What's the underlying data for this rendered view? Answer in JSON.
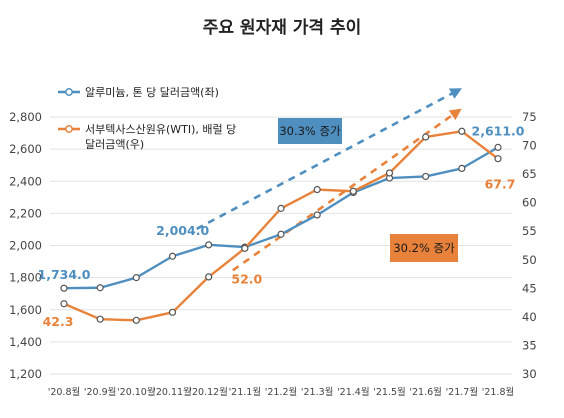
{
  "chart_data": {
    "type": "line",
    "title": "주요 원자재 가격 추이",
    "categories": [
      "'20.8월",
      "'20.9월",
      "'20.10월",
      "'20.11월",
      "'20.12월",
      "'21.1월",
      "'21.2월",
      "'21.3월",
      "'21.4월",
      "'21.5월",
      "'21.6월",
      "'21.7월",
      "'21.8월"
    ],
    "series": [
      {
        "name": "알루미늄, 톤 당 달러금액(좌)",
        "axis": "left",
        "color": "#4f8fc0",
        "values": [
          1734.0,
          1737,
          1800,
          1933,
          2004.0,
          1990,
          2070,
          2190,
          2330,
          2420,
          2430,
          2480,
          2611.0
        ]
      },
      {
        "name": "서부텍사스산원유(WTI), 배럴 당 달러금액(우)",
        "axis": "right",
        "color": "#e8823a",
        "values": [
          42.3,
          39.6,
          39.4,
          40.8,
          47.0,
          52.0,
          59.0,
          62.3,
          62.0,
          65.2,
          71.5,
          72.5,
          67.7
        ]
      }
    ],
    "y_left": {
      "min": 1200,
      "max": 2800,
      "ticks": [
        "1,200",
        "1,400",
        "1,600",
        "1,800",
        "2,000",
        "2,200",
        "2,400",
        "2,600",
        "2,800"
      ]
    },
    "y_right": {
      "min": 30,
      "max": 75,
      "ticks": [
        "30",
        "35",
        "40",
        "45",
        "50",
        "55",
        "60",
        "65",
        "70",
        "75"
      ]
    },
    "data_labels": [
      {
        "series": 0,
        "index": 0,
        "text": "1,734.0"
      },
      {
        "series": 0,
        "index": 4,
        "text": "2,004.0"
      },
      {
        "series": 0,
        "index": 12,
        "text": "2,611.0"
      },
      {
        "series": 1,
        "index": 0,
        "text": "42.3"
      },
      {
        "series": 1,
        "index": 5,
        "text": "52.0"
      },
      {
        "series": 1,
        "index": 12,
        "text": "67.7"
      }
    ],
    "annotations": [
      {
        "text": "30.3% 증가",
        "color": "#4f8fc0",
        "text_color": "#1a1a1a"
      },
      {
        "text": "30.2% 증가",
        "color": "#e8823a",
        "text_color": "#1a1a1a"
      }
    ],
    "legend_position": "top-left",
    "grid": "horizontal"
  }
}
